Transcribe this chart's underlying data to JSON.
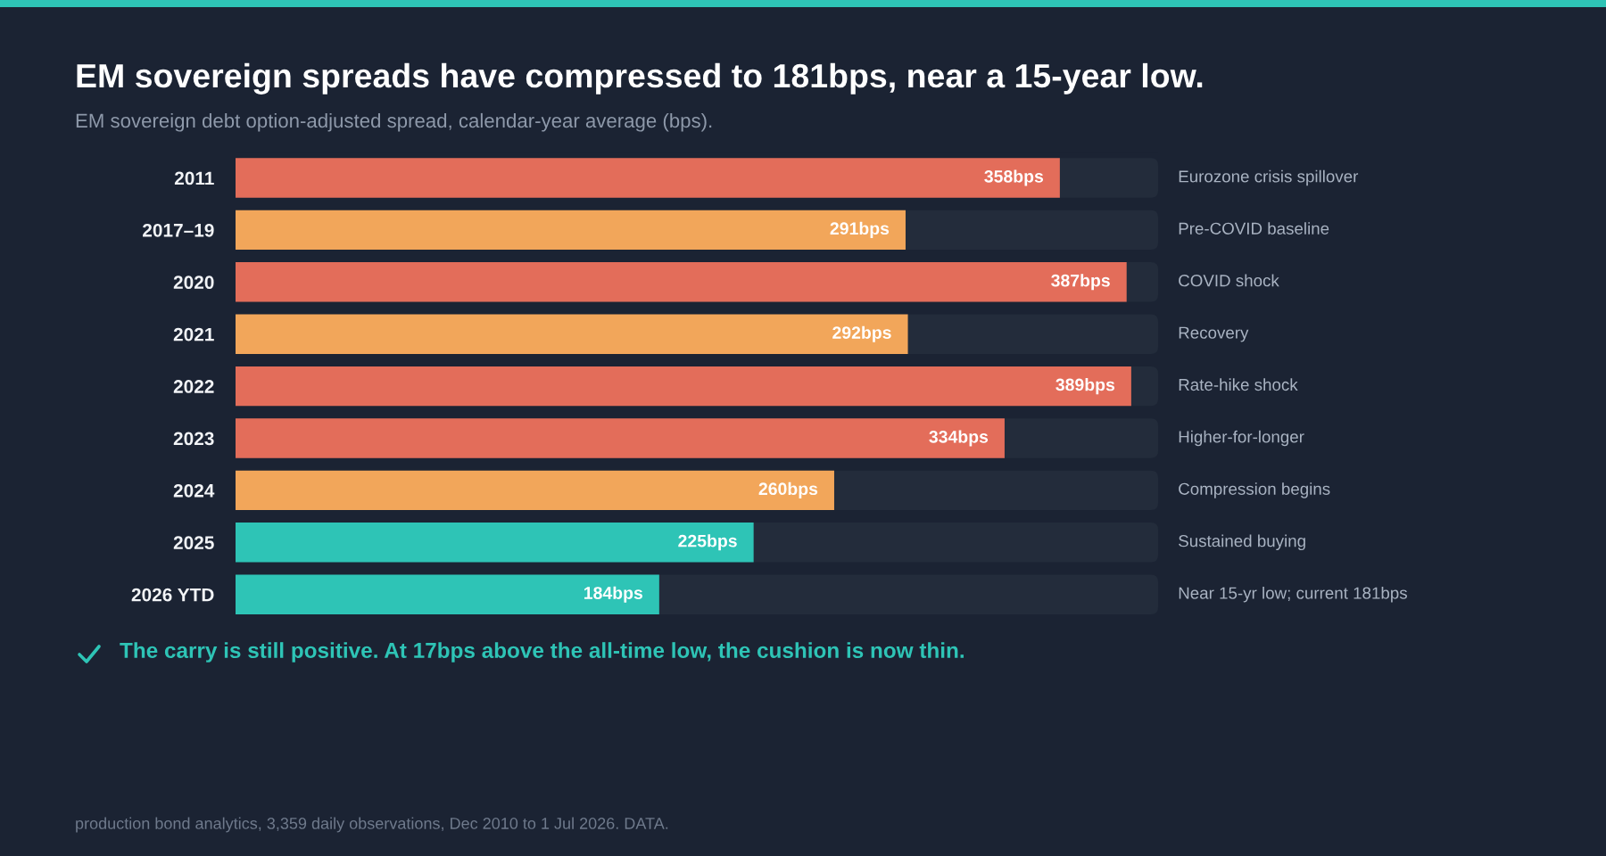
{
  "chart_data": {
    "type": "bar",
    "orientation": "horizontal",
    "title": "EM sovereign spreads have compressed to 181bps, near a 15-year low.",
    "subtitle": "EM sovereign debt option-adjusted spread, calendar-year average (bps).",
    "categories": [
      "2011",
      "2017–19",
      "2020",
      "2021",
      "2022",
      "2023",
      "2024",
      "2025",
      "2026 YTD"
    ],
    "values": [
      358,
      291,
      387,
      292,
      389,
      334,
      260,
      225,
      184
    ],
    "colors": [
      "#e36d5a",
      "#f2a65a",
      "#e36d5a",
      "#f2a65a",
      "#e36d5a",
      "#e36d5a",
      "#f2a65a",
      "#2ec4b6",
      "#2ec4b6"
    ],
    "value_labels": [
      "358bps",
      "291bps",
      "387bps",
      "292bps",
      "389bps",
      "334bps",
      "260bps",
      "225bps",
      "184bps"
    ],
    "tick_labels": "y",
    "annotations": [
      "Eurozone crisis spillover",
      "Pre-COVID baseline",
      "COVID shock",
      "Recovery",
      "Rate-hike shock",
      "Higher-for-longer",
      "Compression begins",
      "Sustained buying",
      "Near 15-yr low; current 181bps",
      "The carry is still positive. At 17bps above the all-time low, the cushion is now thin.",
      "production bond analytics, 3,359 daily observations, Dec 2010 to 1 Jul 2026. DATA."
    ]
  }
}
